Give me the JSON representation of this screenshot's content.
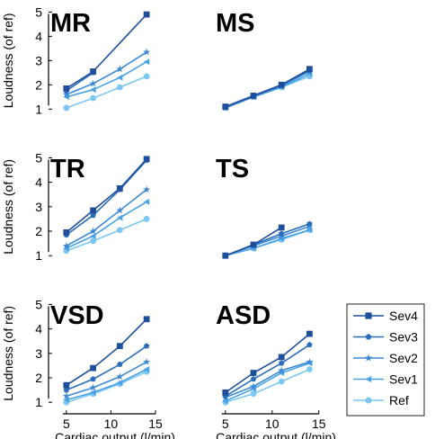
{
  "figure": {
    "ylabel": "Loudness (of ref)",
    "xlabel": "Cardiac output (l/min)",
    "x_ticks": [
      "5",
      "10",
      "15"
    ],
    "y_ticks": [
      "1",
      "2",
      "3",
      "4",
      "5"
    ]
  },
  "legend": {
    "placement": "bottom-right",
    "entries": [
      {
        "label": "Sev4",
        "color": "#1f4e9c",
        "marker": "square"
      },
      {
        "label": "Sev3",
        "color": "#2a6ebb",
        "marker": "pentagon"
      },
      {
        "label": "Sev2",
        "color": "#3f8ad6",
        "marker": "star"
      },
      {
        "label": "Sev1",
        "color": "#4aa3e6",
        "marker": "triangle-left"
      },
      {
        "label": "Ref",
        "color": "#7cc7f2",
        "marker": "circle"
      }
    ]
  },
  "chart_data": [
    {
      "type": "line",
      "title": "MR",
      "x": [
        5,
        8,
        11,
        14
      ],
      "xlim": [
        3,
        15.5
      ],
      "ylim": [
        0.75,
        5.2
      ],
      "series": [
        {
          "name": "Sev4",
          "values": [
            1.85,
            2.55,
            null,
            4.9
          ]
        },
        {
          "name": "Sev3",
          "values": [
            1.75,
            2.5,
            null,
            null
          ]
        },
        {
          "name": "Sev2",
          "values": [
            1.6,
            2.05,
            2.65,
            3.35
          ]
        },
        {
          "name": "Sev1",
          "values": [
            1.5,
            1.8,
            2.3,
            2.95
          ]
        },
        {
          "name": "Ref",
          "values": [
            1.05,
            1.45,
            1.9,
            2.35
          ]
        }
      ]
    },
    {
      "type": "line",
      "title": "MS",
      "x": [
        5,
        8,
        11,
        14
      ],
      "xlim": [
        3,
        15.5
      ],
      "ylim": [
        0.75,
        5.2
      ],
      "series": [
        {
          "name": "Sev4",
          "values": [
            1.1,
            1.55,
            2.0,
            2.65
          ]
        },
        {
          "name": "Sev3",
          "values": [
            1.1,
            1.55,
            2.0,
            2.6
          ]
        },
        {
          "name": "Sev2",
          "values": [
            1.05,
            1.5,
            1.95,
            2.55
          ]
        },
        {
          "name": "Sev1",
          "values": [
            1.05,
            1.5,
            1.9,
            2.45
          ]
        },
        {
          "name": "Ref",
          "values": [
            1.05,
            1.5,
            1.9,
            2.35
          ]
        }
      ]
    },
    {
      "type": "line",
      "title": "TR",
      "x": [
        5,
        8,
        11,
        14
      ],
      "xlim": [
        3,
        15.5
      ],
      "ylim": [
        0.75,
        5.2
      ],
      "series": [
        {
          "name": "Sev4",
          "values": [
            1.95,
            2.85,
            3.75,
            4.95
          ]
        },
        {
          "name": "Sev3",
          "values": [
            1.85,
            2.65,
            3.7,
            4.9
          ]
        },
        {
          "name": "Sev2",
          "values": [
            1.4,
            2.0,
            2.85,
            3.7
          ]
        },
        {
          "name": "Sev1",
          "values": [
            1.3,
            1.8,
            2.55,
            3.2
          ]
        },
        {
          "name": "Ref",
          "values": [
            1.2,
            1.6,
            2.05,
            2.5
          ]
        }
      ]
    },
    {
      "type": "line",
      "title": "TS",
      "x": [
        5,
        8,
        11,
        14
      ],
      "xlim": [
        3,
        15.5
      ],
      "ylim": [
        0.75,
        5.2
      ],
      "series": [
        {
          "name": "Sev4",
          "values": [
            1.0,
            1.45,
            2.15,
            null
          ]
        },
        {
          "name": "Sev3",
          "values": [
            1.0,
            1.45,
            1.9,
            2.3
          ]
        },
        {
          "name": "Sev2",
          "values": [
            1.0,
            1.4,
            1.8,
            2.2
          ]
        },
        {
          "name": "Sev1",
          "values": [
            1.0,
            1.3,
            1.7,
            2.05
          ]
        },
        {
          "name": "Ref",
          "values": [
            1.0,
            1.3,
            1.65,
            2.05
          ]
        }
      ]
    },
    {
      "type": "line",
      "title": "VSD",
      "x": [
        5,
        8,
        11,
        14
      ],
      "xlim": [
        3,
        15.5
      ],
      "ylim": [
        0.75,
        5.2
      ],
      "x_ticks": [
        5,
        10,
        15
      ],
      "xlabel": "Cardiac output (l/min)",
      "series": [
        {
          "name": "Sev4",
          "values": [
            1.7,
            2.4,
            3.3,
            4.4
          ]
        },
        {
          "name": "Sev3",
          "values": [
            1.5,
            1.95,
            2.55,
            3.3
          ]
        },
        {
          "name": "Sev2",
          "values": [
            1.25,
            1.6,
            2.05,
            2.65
          ]
        },
        {
          "name": "Sev1",
          "values": [
            1.1,
            1.4,
            1.8,
            2.35
          ]
        },
        {
          "name": "Ref",
          "values": [
            1.0,
            1.35,
            1.75,
            2.25
          ]
        }
      ]
    },
    {
      "type": "line",
      "title": "ASD",
      "x": [
        5,
        8,
        11,
        14
      ],
      "xlim": [
        3,
        15.5
      ],
      "ylim": [
        0.75,
        5.2
      ],
      "x_ticks": [
        5,
        10,
        15
      ],
      "xlabel": "Cardiac output (l/min)",
      "series": [
        {
          "name": "Sev4",
          "values": [
            1.4,
            2.2,
            2.85,
            3.8
          ]
        },
        {
          "name": "Sev3",
          "values": [
            1.25,
            1.95,
            2.6,
            3.35
          ]
        },
        {
          "name": "Sev2",
          "values": [
            1.2,
            1.65,
            2.3,
            2.65
          ]
        },
        {
          "name": "Sev1",
          "values": [
            1.05,
            1.55,
            2.2,
            2.6
          ]
        },
        {
          "name": "Ref",
          "values": [
            1.0,
            1.35,
            1.85,
            2.35
          ]
        }
      ]
    }
  ]
}
